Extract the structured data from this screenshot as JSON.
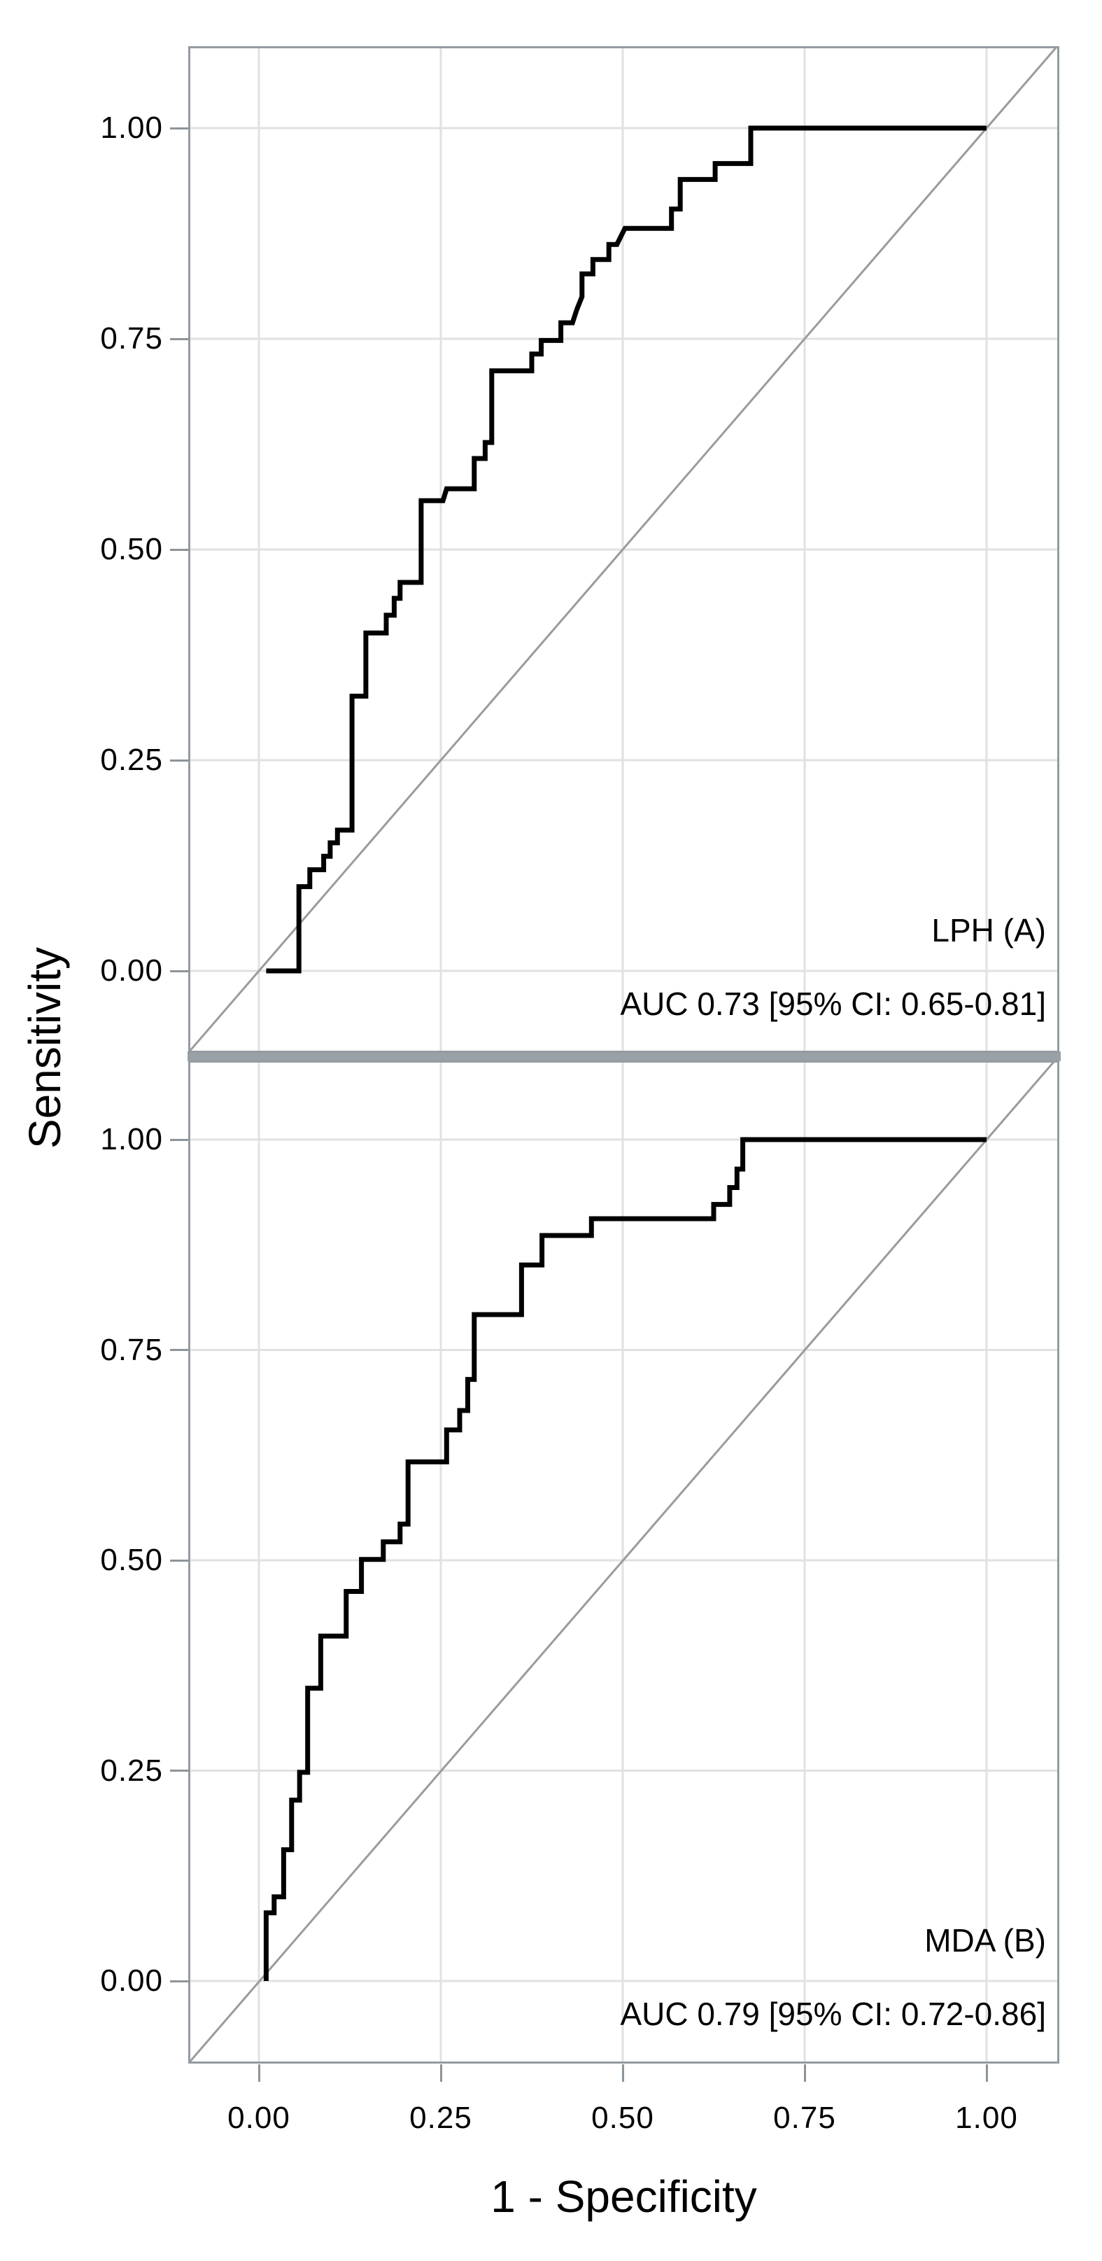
{
  "figure": {
    "y_axis_title": "Sensitivity",
    "x_axis_title": "1 - Specificity",
    "x_tick_labels": [
      "0.00",
      "0.25",
      "0.50",
      "0.75",
      "1.00"
    ],
    "y_tick_labels": [
      "1.00",
      "0.75",
      "0.50",
      "0.25",
      "0.00"
    ],
    "colors": {
      "background": "#ffffff",
      "curve": "#000000",
      "panel_border": "#949ba1",
      "panel_separator": "#99a0a6",
      "gridline": "#e1e1e1",
      "diagonal_reference": "#9b9b9b",
      "tick_mark": "#8d9499",
      "text": "#000000"
    }
  },
  "chart_data": [
    {
      "type": "line",
      "chart_kind": "roc_step_curve",
      "panel_label": "LPH (A)",
      "annotation": "AUC 0.73 [95% CI: 0.65-0.81]",
      "auc": 0.73,
      "ci_95": [
        0.65,
        0.81
      ],
      "xlabel": "1 - Specificity",
      "ylabel": "Sensitivity",
      "xlim": [
        0,
        1
      ],
      "ylim": [
        0,
        1
      ],
      "x_ticks": [
        0,
        0.25,
        0.5,
        0.75,
        1
      ],
      "y_ticks": [
        0,
        0.25,
        0.5,
        0.75,
        1
      ],
      "grid": true,
      "legend": "none",
      "reference_line": "diagonal y = x",
      "roc_points": [
        [
          0.01,
          0.0
        ],
        [
          0.055,
          0.0
        ],
        [
          0.055,
          0.1
        ],
        [
          0.07,
          0.1
        ],
        [
          0.07,
          0.12
        ],
        [
          0.089,
          0.12
        ],
        [
          0.089,
          0.136
        ],
        [
          0.098,
          0.136
        ],
        [
          0.098,
          0.152
        ],
        [
          0.108,
          0.152
        ],
        [
          0.108,
          0.167
        ],
        [
          0.128,
          0.167
        ],
        [
          0.128,
          0.326
        ],
        [
          0.147,
          0.326
        ],
        [
          0.147,
          0.401
        ],
        [
          0.175,
          0.401
        ],
        [
          0.175,
          0.422
        ],
        [
          0.186,
          0.422
        ],
        [
          0.186,
          0.442
        ],
        [
          0.194,
          0.442
        ],
        [
          0.194,
          0.461
        ],
        [
          0.223,
          0.461
        ],
        [
          0.223,
          0.558
        ],
        [
          0.253,
          0.558
        ],
        [
          0.258,
          0.572
        ],
        [
          0.296,
          0.572
        ],
        [
          0.296,
          0.608
        ],
        [
          0.311,
          0.608
        ],
        [
          0.311,
          0.627
        ],
        [
          0.32,
          0.627
        ],
        [
          0.32,
          0.712
        ],
        [
          0.375,
          0.712
        ],
        [
          0.375,
          0.732
        ],
        [
          0.388,
          0.732
        ],
        [
          0.388,
          0.748
        ],
        [
          0.415,
          0.748
        ],
        [
          0.415,
          0.769
        ],
        [
          0.431,
          0.769
        ],
        [
          0.437,
          0.785
        ],
        [
          0.444,
          0.8
        ],
        [
          0.444,
          0.827
        ],
        [
          0.459,
          0.827
        ],
        [
          0.459,
          0.844
        ],
        [
          0.481,
          0.844
        ],
        [
          0.481,
          0.862
        ],
        [
          0.492,
          0.862
        ],
        [
          0.503,
          0.881
        ],
        [
          0.567,
          0.881
        ],
        [
          0.567,
          0.904
        ],
        [
          0.579,
          0.904
        ],
        [
          0.579,
          0.939
        ],
        [
          0.627,
          0.939
        ],
        [
          0.627,
          0.958
        ],
        [
          0.676,
          0.958
        ],
        [
          0.676,
          1.0
        ],
        [
          1.0,
          1.0
        ]
      ]
    },
    {
      "type": "line",
      "chart_kind": "roc_step_curve",
      "panel_label": "MDA (B)",
      "annotation": "AUC 0.79 [95% CI: 0.72-0.86]",
      "auc": 0.79,
      "ci_95": [
        0.72,
        0.86
      ],
      "xlabel": "1 - Specificity",
      "ylabel": "Sensitivity",
      "xlim": [
        0,
        1
      ],
      "ylim": [
        0,
        1
      ],
      "x_ticks": [
        0,
        0.25,
        0.5,
        0.75,
        1
      ],
      "y_ticks": [
        0,
        0.25,
        0.5,
        0.75,
        1
      ],
      "grid": true,
      "legend": "none",
      "reference_line": "diagonal y = x",
      "roc_points": [
        [
          0.01,
          0.0
        ],
        [
          0.01,
          0.081
        ],
        [
          0.021,
          0.081
        ],
        [
          0.021,
          0.1
        ],
        [
          0.034,
          0.1
        ],
        [
          0.034,
          0.156
        ],
        [
          0.045,
          0.156
        ],
        [
          0.045,
          0.215
        ],
        [
          0.056,
          0.215
        ],
        [
          0.056,
          0.248
        ],
        [
          0.067,
          0.248
        ],
        [
          0.067,
          0.348
        ],
        [
          0.085,
          0.348
        ],
        [
          0.085,
          0.41
        ],
        [
          0.12,
          0.41
        ],
        [
          0.12,
          0.463
        ],
        [
          0.141,
          0.463
        ],
        [
          0.141,
          0.501
        ],
        [
          0.171,
          0.501
        ],
        [
          0.171,
          0.522
        ],
        [
          0.194,
          0.522
        ],
        [
          0.194,
          0.543
        ],
        [
          0.205,
          0.543
        ],
        [
          0.205,
          0.617
        ],
        [
          0.258,
          0.617
        ],
        [
          0.258,
          0.655
        ],
        [
          0.276,
          0.655
        ],
        [
          0.276,
          0.678
        ],
        [
          0.287,
          0.678
        ],
        [
          0.287,
          0.715
        ],
        [
          0.296,
          0.715
        ],
        [
          0.296,
          0.792
        ],
        [
          0.361,
          0.792
        ],
        [
          0.361,
          0.851
        ],
        [
          0.389,
          0.851
        ],
        [
          0.389,
          0.886
        ],
        [
          0.457,
          0.886
        ],
        [
          0.457,
          0.906
        ],
        [
          0.625,
          0.906
        ],
        [
          0.625,
          0.923
        ],
        [
          0.647,
          0.923
        ],
        [
          0.647,
          0.943
        ],
        [
          0.657,
          0.943
        ],
        [
          0.657,
          0.965
        ],
        [
          0.665,
          0.965
        ],
        [
          0.665,
          1.0
        ],
        [
          1.0,
          1.0
        ]
      ]
    }
  ]
}
